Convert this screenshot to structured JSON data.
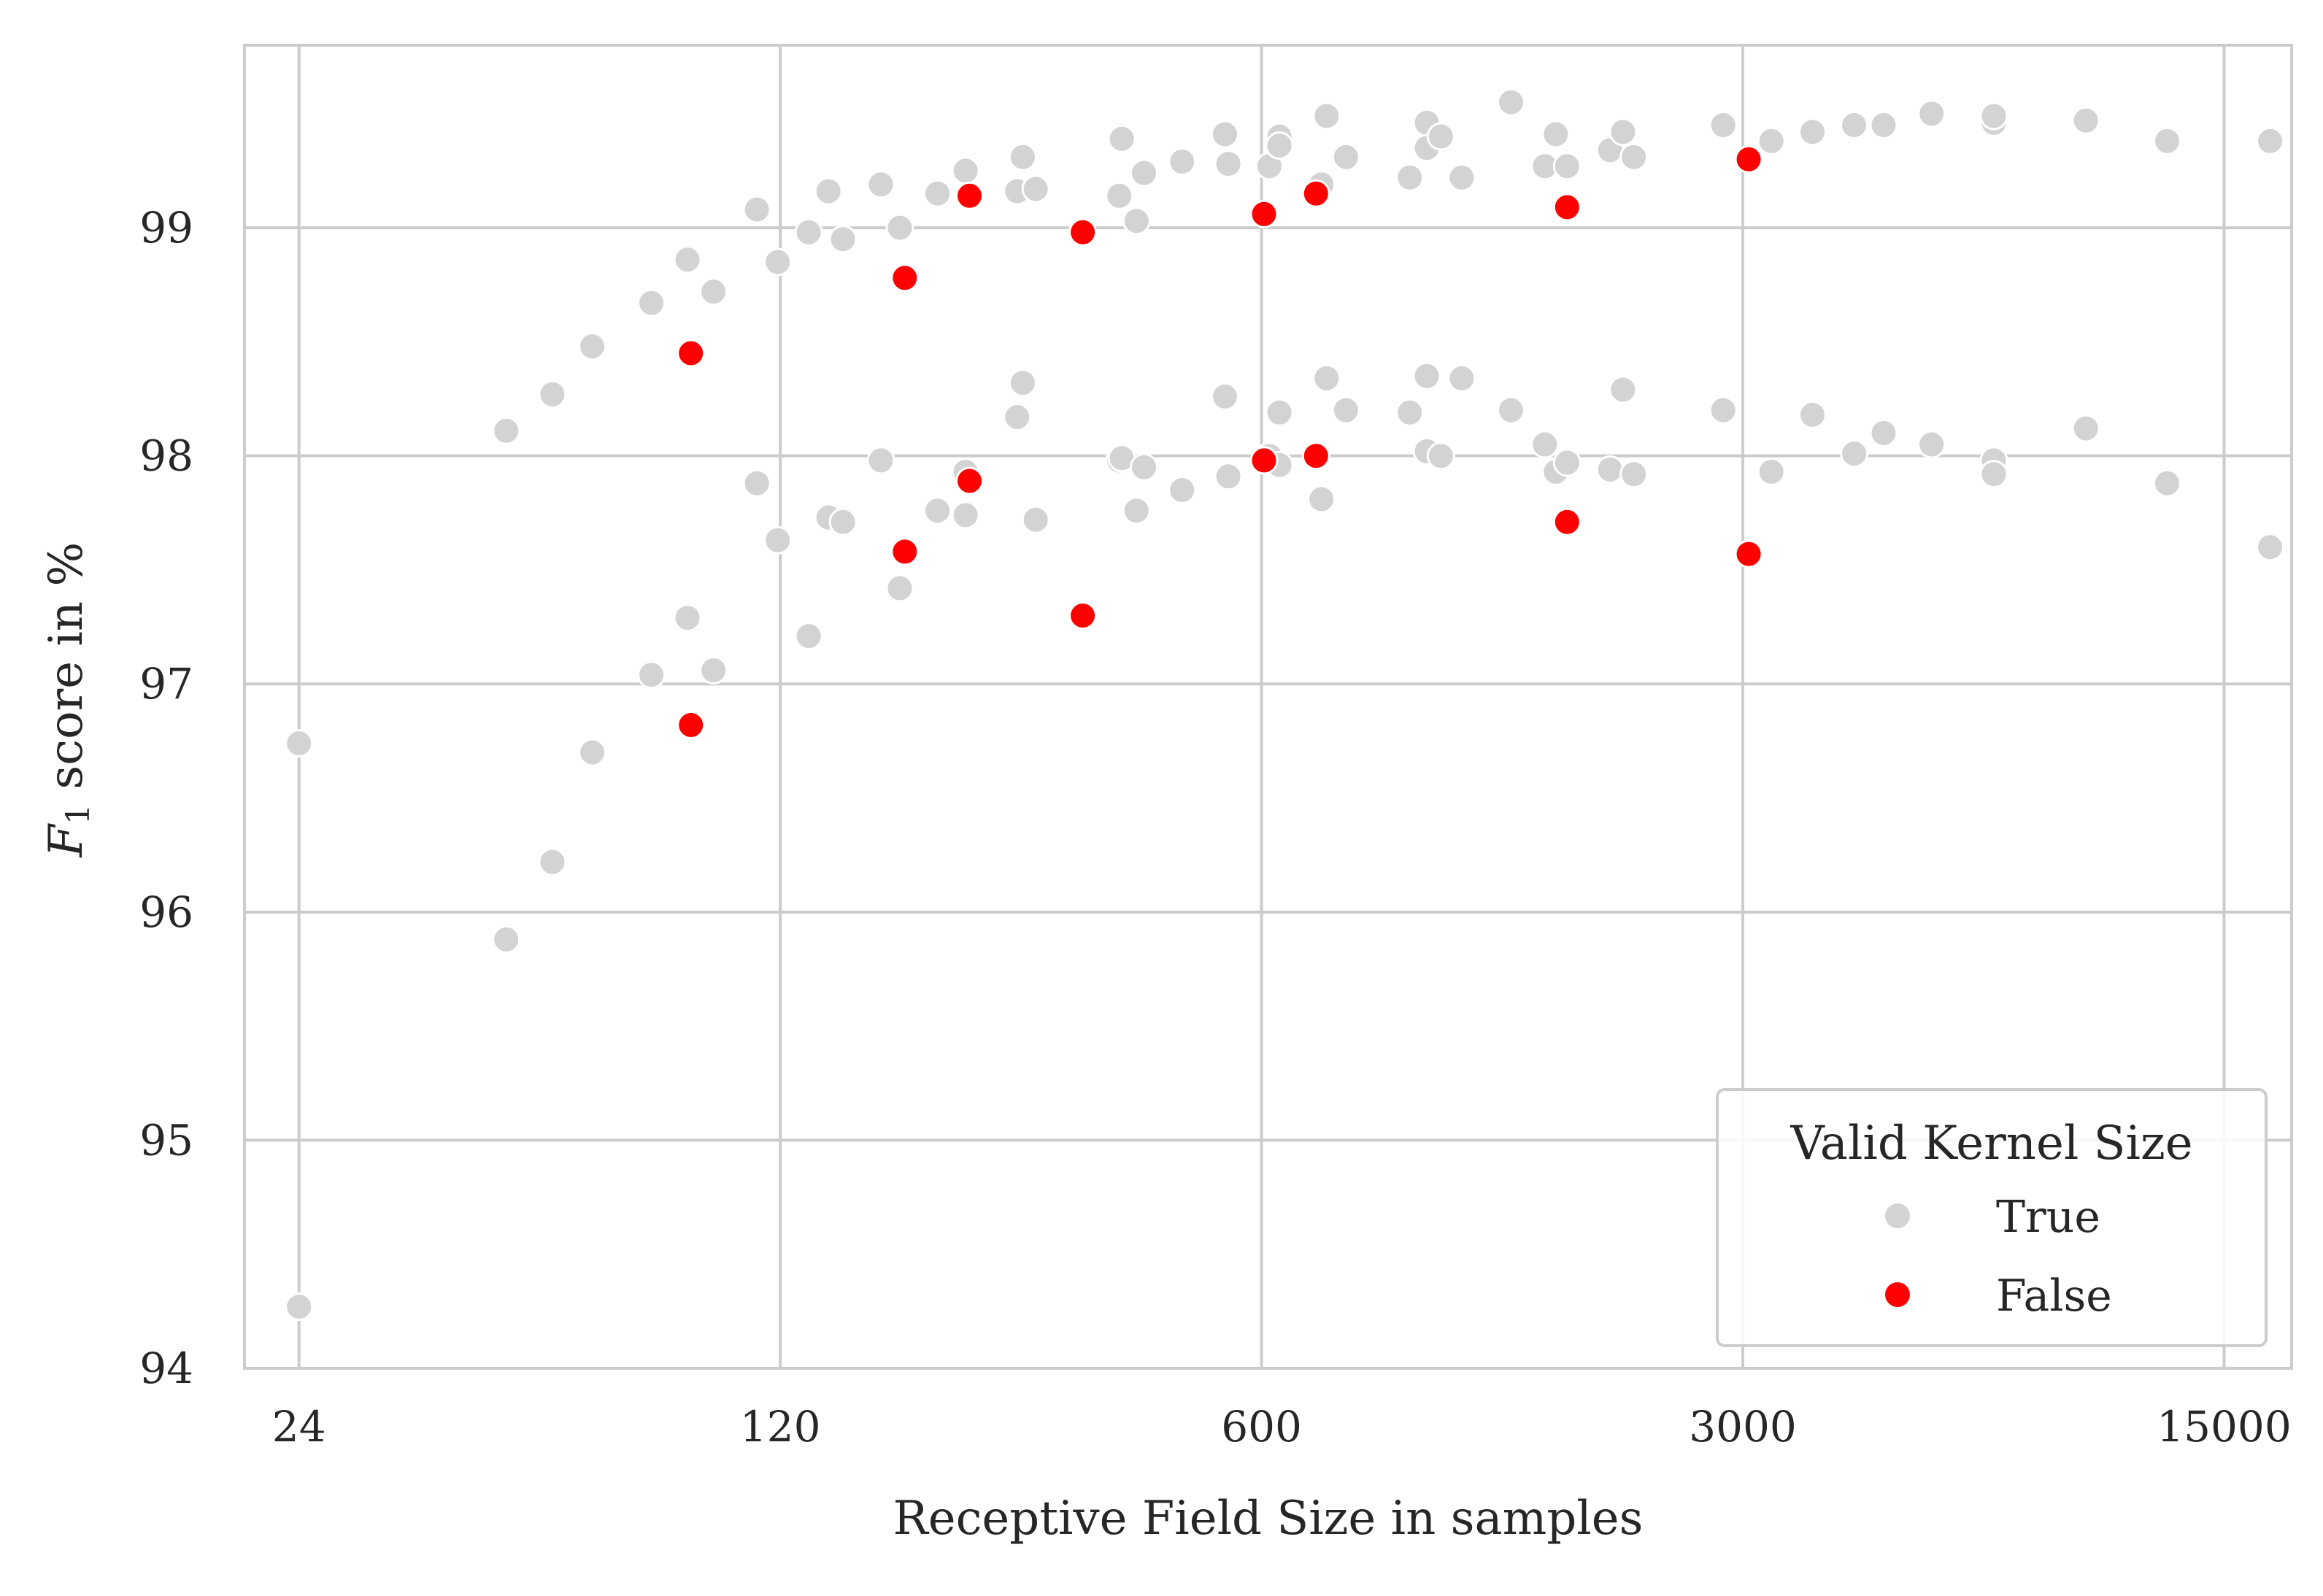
{
  "chart_data": {
    "type": "scatter",
    "title": "",
    "xlabel": "Receptive Field Size in samples",
    "ylabel_main": "F",
    "ylabel_sub": "1",
    "ylabel_rest": " score in %",
    "xscale": "log",
    "xlim": [
      20,
      18800
    ],
    "ylim": [
      94,
      99.8
    ],
    "x_ticks": [
      24,
      120,
      600,
      3000,
      15000
    ],
    "x_tick_labels": [
      "24",
      "120",
      "600",
      "3000",
      "15000"
    ],
    "y_ticks": [
      94,
      95,
      96,
      97,
      98,
      99
    ],
    "y_tick_labels": [
      "94",
      "95",
      "96",
      "97",
      "98",
      "99"
    ],
    "grid": true,
    "legend": {
      "title": "Valid Kernel Size",
      "position": "lower-right",
      "entries": [
        "True",
        "False"
      ]
    },
    "colors": {
      "True": "#d3d3d3",
      "False": "#ff0000",
      "grid": "#cccccc",
      "frame": "#cccccc",
      "text": "#262626"
    },
    "series": [
      {
        "name": "True",
        "points": [
          [
            24,
            96.74
          ],
          [
            24,
            94.27
          ],
          [
            48,
            98.11
          ],
          [
            48,
            95.88
          ],
          [
            56,
            98.27
          ],
          [
            56,
            96.22
          ],
          [
            64,
            98.48
          ],
          [
            64,
            96.7
          ],
          [
            78,
            98.67
          ],
          [
            78,
            97.04
          ],
          [
            88,
            98.86
          ],
          [
            88,
            97.29
          ],
          [
            96,
            98.72
          ],
          [
            96,
            97.06
          ],
          [
            111,
            99.08
          ],
          [
            111,
            97.88
          ],
          [
            119,
            98.85
          ],
          [
            119,
            97.63
          ],
          [
            132,
            98.98
          ],
          [
            132,
            97.21
          ],
          [
            141,
            99.16
          ],
          [
            141,
            97.73
          ],
          [
            148,
            98.95
          ],
          [
            148,
            97.71
          ],
          [
            168,
            99.19
          ],
          [
            168,
            97.98
          ],
          [
            179,
            99.0
          ],
          [
            179,
            97.42
          ],
          [
            203,
            99.15
          ],
          [
            203,
            97.76
          ],
          [
            223,
            99.25
          ],
          [
            223,
            97.93
          ],
          [
            223,
            97.74
          ],
          [
            265,
            99.16
          ],
          [
            265,
            98.17
          ],
          [
            270,
            99.31
          ],
          [
            270,
            98.32
          ],
          [
            282,
            99.17
          ],
          [
            282,
            97.72
          ],
          [
            373,
            99.14
          ],
          [
            373,
            97.98
          ],
          [
            376,
            99.39
          ],
          [
            376,
            97.99
          ],
          [
            395,
            99.03
          ],
          [
            395,
            97.76
          ],
          [
            405,
            99.24
          ],
          [
            405,
            97.95
          ],
          [
            460,
            99.29
          ],
          [
            460,
            97.85
          ],
          [
            531,
            99.41
          ],
          [
            531,
            98.26
          ],
          [
            537,
            99.28
          ],
          [
            537,
            97.91
          ],
          [
            616,
            99.27
          ],
          [
            616,
            98.0
          ],
          [
            637,
            99.4
          ],
          [
            637,
            99.36
          ],
          [
            637,
            98.19
          ],
          [
            637,
            97.96
          ],
          [
            733,
            99.19
          ],
          [
            733,
            97.81
          ],
          [
            746,
            99.49
          ],
          [
            746,
            98.34
          ],
          [
            796,
            99.31
          ],
          [
            796,
            98.2
          ],
          [
            985,
            99.22
          ],
          [
            985,
            98.19
          ],
          [
            1043,
            99.46
          ],
          [
            1043,
            99.35
          ],
          [
            1043,
            98.35
          ],
          [
            1043,
            98.02
          ],
          [
            1093,
            99.4
          ],
          [
            1093,
            98.0
          ],
          [
            1172,
            99.22
          ],
          [
            1172,
            98.34
          ],
          [
            1382,
            99.55
          ],
          [
            1382,
            98.2
          ],
          [
            1547,
            99.27
          ],
          [
            1547,
            98.05
          ],
          [
            1605,
            99.41
          ],
          [
            1605,
            97.93
          ],
          [
            1667,
            99.27
          ],
          [
            1667,
            97.97
          ],
          [
            1925,
            99.34
          ],
          [
            1925,
            97.94
          ],
          [
            2010,
            99.42
          ],
          [
            2010,
            98.29
          ],
          [
            2083,
            99.31
          ],
          [
            2083,
            97.92
          ],
          [
            2810,
            99.45
          ],
          [
            2810,
            98.2
          ],
          [
            3301,
            99.38
          ],
          [
            3301,
            97.93
          ],
          [
            3787,
            99.42
          ],
          [
            3787,
            98.18
          ],
          [
            4353,
            99.45
          ],
          [
            4353,
            98.01
          ],
          [
            4805,
            99.45
          ],
          [
            4805,
            98.1
          ],
          [
            5640,
            99.5
          ],
          [
            5640,
            98.05
          ],
          [
            6945,
            99.46
          ],
          [
            6945,
            99.49
          ],
          [
            6945,
            97.98
          ],
          [
            6945,
            97.92
          ],
          [
            9450,
            99.47
          ],
          [
            9450,
            98.12
          ],
          [
            12400,
            99.38
          ],
          [
            12400,
            97.88
          ],
          [
            17500,
            99.38
          ],
          [
            17500,
            97.6
          ]
        ]
      },
      {
        "name": "False",
        "points": [
          [
            89,
            98.45
          ],
          [
            89,
            96.82
          ],
          [
            182,
            98.78
          ],
          [
            182,
            97.58
          ],
          [
            226,
            99.14
          ],
          [
            226,
            97.89
          ],
          [
            330,
            98.98
          ],
          [
            330,
            97.3
          ],
          [
            605,
            99.06
          ],
          [
            605,
            97.98
          ],
          [
            720,
            99.15
          ],
          [
            720,
            98.0
          ],
          [
            1667,
            99.09
          ],
          [
            1667,
            97.71
          ],
          [
            3060,
            99.3
          ],
          [
            3060,
            97.57
          ]
        ]
      }
    ]
  }
}
